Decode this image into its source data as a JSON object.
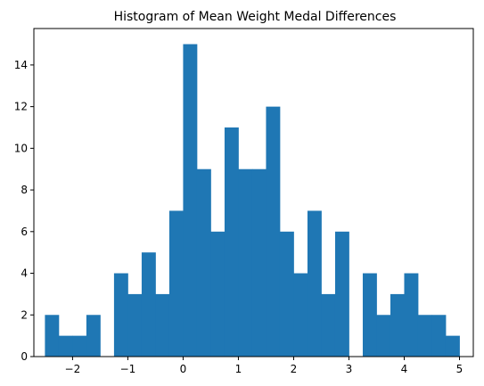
{
  "chart_data": {
    "type": "bar",
    "title": "Histogram of Mean Weight Medal Differences",
    "xlabel": "",
    "ylabel": "",
    "xlim": [
      -2.7,
      5.25
    ],
    "ylim": [
      0,
      15.75
    ],
    "x_ticks": [
      -2,
      -1,
      0,
      1,
      2,
      3,
      4,
      5
    ],
    "y_ticks": [
      0,
      2,
      4,
      6,
      8,
      10,
      12,
      14
    ],
    "bin_start": -2.5,
    "bin_width": 0.25,
    "counts": [
      2,
      1,
      1,
      2,
      0,
      4,
      3,
      5,
      3,
      7,
      15,
      9,
      6,
      11,
      9,
      9,
      12,
      6,
      4,
      7,
      3,
      6,
      0,
      4,
      2,
      3,
      4,
      2,
      2,
      1
    ],
    "bar_color": "#1f77b4",
    "grid": false,
    "legend": "none"
  }
}
